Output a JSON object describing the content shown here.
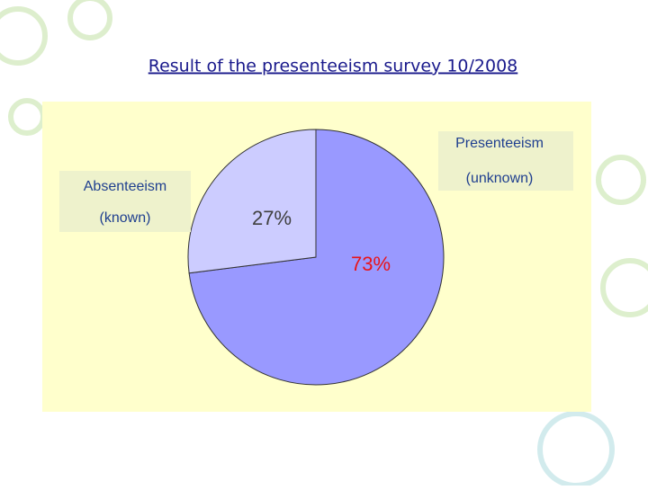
{
  "chart_data": {
    "type": "pie",
    "title": "Result of the presenteeism survey 10/2008",
    "categories": [
      [
        "Presenteeism",
        "(unknown)"
      ],
      [
        "Absenteeism",
        "(known)"
      ]
    ],
    "values": [
      73,
      27
    ],
    "value_labels": [
      "73%",
      "27%"
    ],
    "colors": [
      "#9999ff",
      "#ccccff"
    ],
    "value_label_colors": [
      "#e8141a",
      "#404040"
    ]
  }
}
